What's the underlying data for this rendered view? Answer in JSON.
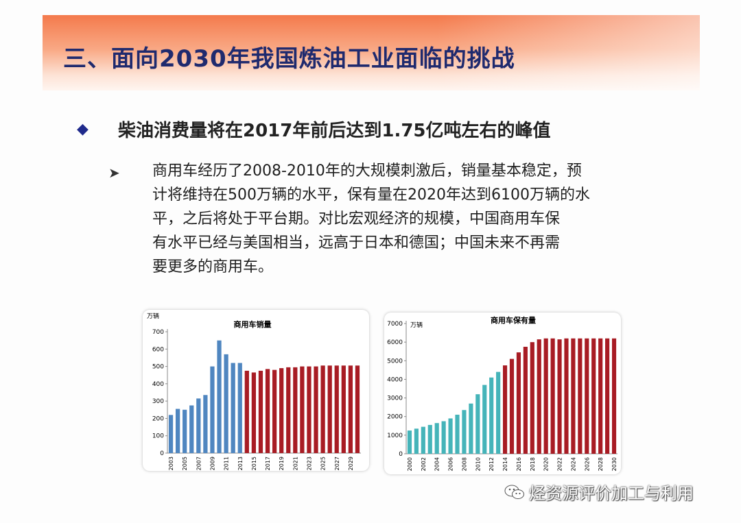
{
  "slide": {
    "title": "三、面向2030年我国炼油工业面临的挑战",
    "bullet": "柴油消费量将在2017年前后达到1.75亿吨左右的峰值",
    "sub_lines": [
      "商用车经历了2008-2010年的大规模刺激后，销量基本稳定，预",
      "计将维持在500万辆的水平，保有量在2020年达到6100万辆的水",
      "平，之后将处于平台期。对比宏观经济的规模，中国商用车保",
      "有水平已经与美国相当，远高于日本和德国；中国未来不再需",
      "要更多的商用车。"
    ],
    "watermark": "烃资源评价加工与利用"
  },
  "icons": {
    "bullet": "diamond-icon",
    "sub_bullet": "arrowhead-icon",
    "watermark": "wechat-icon"
  },
  "colors": {
    "title_text": "#1f2a6e",
    "history_bar": "#4f86c0",
    "forecast_bar": "#a81c24",
    "history_bar_b": "#45b4b9",
    "forecast_bar_b": "#a81c24"
  },
  "chart_data": [
    {
      "type": "bar",
      "title": "商用车销量",
      "unit": "万辆",
      "ylim": [
        0,
        700
      ],
      "yticks": [
        0,
        100,
        200,
        300,
        400,
        500,
        600,
        700
      ],
      "categories": [
        2003,
        2004,
        2005,
        2006,
        2007,
        2008,
        2009,
        2010,
        2011,
        2012,
        2013,
        2014,
        2015,
        2016,
        2017,
        2018,
        2019,
        2020,
        2021,
        2022,
        2023,
        2024,
        2025,
        2026,
        2027,
        2028,
        2029,
        2030
      ],
      "xtick_labels": [
        "2003",
        "2005",
        "2007",
        "2009",
        "2011",
        "2013",
        "2015",
        "2017",
        "2019",
        "2021",
        "2023",
        "2025",
        "2027",
        "2029"
      ],
      "values": [
        220,
        255,
        250,
        275,
        315,
        335,
        500,
        650,
        570,
        520,
        520,
        475,
        465,
        475,
        485,
        480,
        490,
        495,
        495,
        500,
        500,
        500,
        505,
        505,
        505,
        505,
        505,
        505
      ],
      "forecast_start": 2014,
      "grid": false
    },
    {
      "type": "bar",
      "title": "商用车保有量",
      "unit": "万辆",
      "ylim": [
        0,
        7000
      ],
      "yticks": [
        0,
        1000,
        2000,
        3000,
        4000,
        5000,
        6000,
        7000
      ],
      "categories": [
        2000,
        2001,
        2002,
        2003,
        2004,
        2005,
        2006,
        2007,
        2008,
        2009,
        2010,
        2011,
        2012,
        2013,
        2014,
        2015,
        2016,
        2017,
        2018,
        2019,
        2020,
        2021,
        2022,
        2023,
        2024,
        2025,
        2026,
        2027,
        2028,
        2029,
        2030
      ],
      "xtick_labels": [
        "2000",
        "2002",
        "2004",
        "2006",
        "2008",
        "2010",
        "2012",
        "2014",
        "2016",
        "2018",
        "2020",
        "2022",
        "2024",
        "2026",
        "2028",
        "2030"
      ],
      "values": [
        1250,
        1350,
        1450,
        1550,
        1650,
        1750,
        1900,
        2100,
        2350,
        2700,
        3200,
        3700,
        4100,
        4400,
        4750,
        5100,
        5450,
        5750,
        6000,
        6150,
        6200,
        6200,
        6150,
        6200,
        6200,
        6200,
        6200,
        6200,
        6200,
        6200,
        6200
      ],
      "forecast_start": 2014,
      "grid": false
    }
  ]
}
